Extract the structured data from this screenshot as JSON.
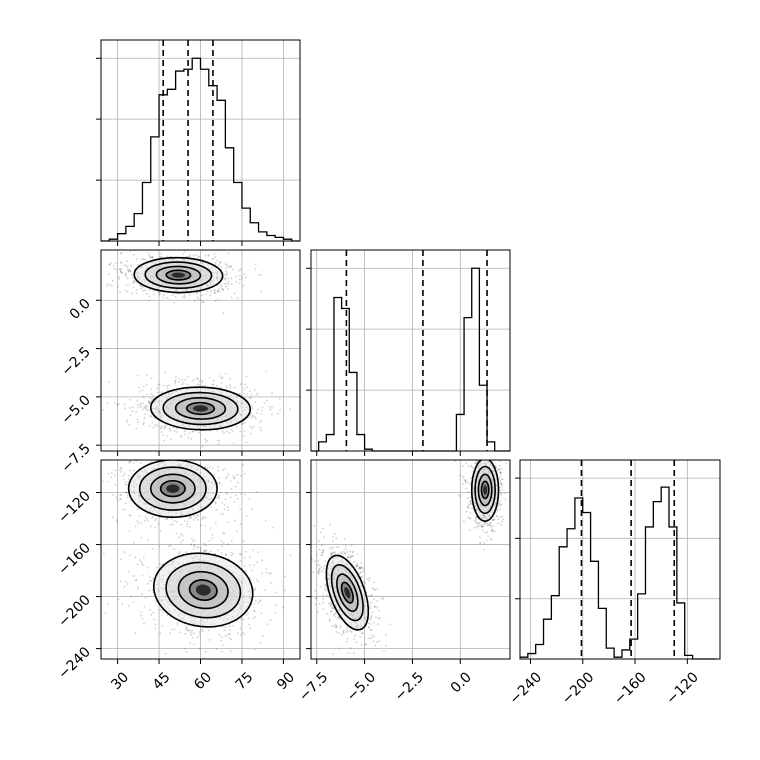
{
  "chart_data": {
    "type": "corner",
    "title": "",
    "parameters": [
      "p0",
      "p1",
      "p2"
    ],
    "grid": true,
    "quantile_lines": "dashed",
    "axes": {
      "p0": {
        "range": [
          24,
          96
        ],
        "ticks": [
          30,
          45,
          60,
          75,
          90
        ],
        "tick_labels": [
          "30",
          "45",
          "60",
          "75",
          "90"
        ]
      },
      "p1": {
        "range": [
          -7.8,
          2.6
        ],
        "ticks": [
          -7.5,
          -5.0,
          -2.5,
          0.0
        ],
        "tick_labels": [
          "−7.5",
          "−5.0",
          "−2.5",
          "0.0"
        ]
      },
      "p2": {
        "range": [
          -248,
          -95
        ],
        "ticks": [
          -240,
          -200,
          -160,
          -120
        ],
        "tick_labels": [
          "−240",
          "−200",
          "−160",
          "−120"
        ]
      }
    },
    "marginals": [
      {
        "param": "p0",
        "bins": [
          24,
          27,
          30,
          33,
          36,
          39,
          42,
          45,
          48,
          51,
          54,
          57,
          60,
          63,
          66,
          69,
          72,
          75,
          78,
          81,
          84,
          87,
          90,
          93,
          96
        ],
        "counts": [
          0,
          0.01,
          0.04,
          0.08,
          0.15,
          0.32,
          0.57,
          0.8,
          0.83,
          0.93,
          0.94,
          1.0,
          0.94,
          0.85,
          0.77,
          0.51,
          0.32,
          0.18,
          0.1,
          0.05,
          0.03,
          0.02,
          0.01,
          0
        ],
        "quantiles": [
          46.5,
          55.5,
          64.5
        ]
      },
      {
        "param": "p1",
        "bins": [
          -7.8,
          -7.4,
          -7.0,
          -6.6,
          -6.2,
          -5.8,
          -5.4,
          -5.0,
          -4.6,
          -4.2,
          -3.8,
          -3.4,
          -3.0,
          -2.6,
          -2.2,
          -1.8,
          -1.4,
          -1.0,
          -0.6,
          -0.2,
          0.2,
          0.6,
          1.0,
          1.4,
          1.8,
          2.2,
          2.6
        ],
        "counts": [
          0,
          0.05,
          0.09,
          0.84,
          0.78,
          0.43,
          0.09,
          0.01,
          0,
          0,
          0,
          0,
          0,
          0,
          0,
          0,
          0,
          0,
          0,
          0.2,
          0.73,
          1.0,
          0.36,
          0.05,
          0,
          0,
          0
        ],
        "quantiles": [
          -5.95,
          -1.95,
          1.4
        ]
      },
      {
        "param": "p2",
        "bins": [
          -248,
          -242,
          -236,
          -230,
          -224,
          -218,
          -212,
          -206,
          -200,
          -194,
          -188,
          -182,
          -176,
          -170,
          -164,
          -158,
          -152,
          -146,
          -140,
          -134,
          -128,
          -122,
          -116,
          -110,
          -104,
          -98
        ],
        "counts": [
          0.01,
          0.03,
          0.08,
          0.22,
          0.35,
          0.62,
          0.72,
          0.89,
          0.81,
          0.54,
          0.28,
          0.06,
          0.01,
          0.05,
          0.11,
          0.36,
          0.73,
          0.87,
          0.95,
          0.73,
          0.31,
          0.02,
          0,
          0,
          0
        ],
        "quantiles": [
          -201,
          -163,
          -130
        ]
      }
    ],
    "joint": [
      {
        "x": "p0",
        "y": "p1",
        "modes": [
          {
            "center": [
              52,
              1.3
            ],
            "sd": [
              8,
              0.45
            ],
            "rot": -0.02
          },
          {
            "center": [
              60,
              -5.6
            ],
            "sd": [
              9,
              0.55
            ],
            "rot": -0.02
          }
        ]
      },
      {
        "x": "p0",
        "y": "p2",
        "modes": [
          {
            "center": [
              50,
              -117
            ],
            "sd": [
              8,
              11
            ],
            "rot": 0.0
          },
          {
            "center": [
              61,
              -195
            ],
            "sd": [
              9,
              14
            ],
            "rot": -0.15
          }
        ]
      },
      {
        "x": "p1",
        "y": "p2",
        "modes": [
          {
            "center": [
              1.3,
              -118
            ],
            "sd": [
              0.35,
              12
            ],
            "rot": 0.0
          },
          {
            "center": [
              -5.9,
              -197
            ],
            "sd": [
              0.45,
              15
            ],
            "rot": 0.35
          }
        ]
      }
    ]
  }
}
